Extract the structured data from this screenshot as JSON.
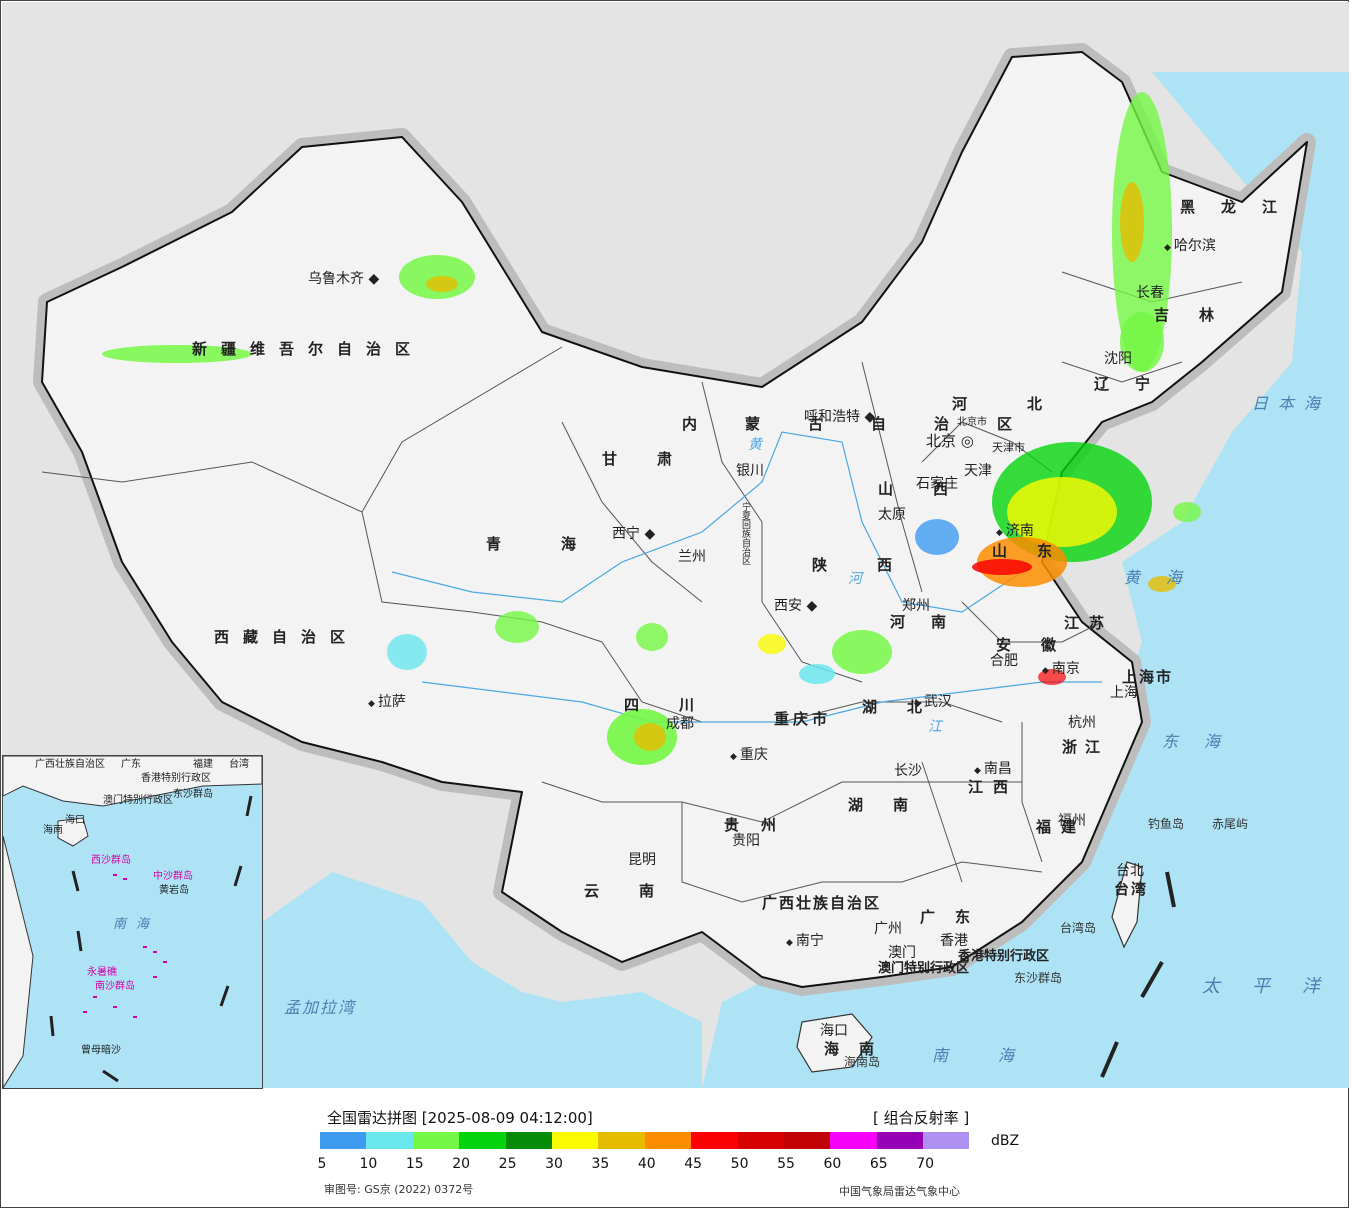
{
  "map": {
    "provinces": [
      {
        "name": "新疆维吾尔自治区"
      },
      {
        "name": "西藏自治区"
      },
      {
        "name": "青海"
      },
      {
        "name": "甘肃"
      },
      {
        "name": "内蒙古自治区"
      },
      {
        "name": "黑龙江"
      },
      {
        "name": "吉林"
      },
      {
        "name": "辽宁"
      },
      {
        "name": "河北"
      },
      {
        "name": "山西"
      },
      {
        "name": "山东"
      },
      {
        "name": "陕西"
      },
      {
        "name": "河南"
      },
      {
        "name": "江苏"
      },
      {
        "name": "安徽"
      },
      {
        "name": "湖北"
      },
      {
        "name": "四川"
      },
      {
        "name": "重庆市"
      },
      {
        "name": "贵州"
      },
      {
        "name": "云南"
      },
      {
        "name": "湖南"
      },
      {
        "name": "江西"
      },
      {
        "name": "浙江"
      },
      {
        "name": "福建"
      },
      {
        "name": "广东"
      },
      {
        "name": "广西壮族自治区"
      },
      {
        "name": "海南"
      },
      {
        "name": "台湾"
      },
      {
        "name": "宁夏回族自治区"
      },
      {
        "name": "上海市"
      },
      {
        "name": "天津市"
      },
      {
        "name": "北京市"
      },
      {
        "name": "香港特别行政区"
      },
      {
        "name": "澳门特别行政区"
      }
    ],
    "cities": [
      {
        "name": "乌鲁木齐"
      },
      {
        "name": "拉萨"
      },
      {
        "name": "西宁"
      },
      {
        "name": "兰州"
      },
      {
        "name": "银川"
      },
      {
        "name": "呼和浩特"
      },
      {
        "name": "哈尔滨"
      },
      {
        "name": "长春"
      },
      {
        "name": "沈阳"
      },
      {
        "name": "北京"
      },
      {
        "name": "天津"
      },
      {
        "name": "石家庄"
      },
      {
        "name": "太原"
      },
      {
        "name": "济南"
      },
      {
        "name": "西安"
      },
      {
        "name": "郑州"
      },
      {
        "name": "合肥"
      },
      {
        "name": "南京"
      },
      {
        "name": "上海"
      },
      {
        "name": "杭州"
      },
      {
        "name": "武汉"
      },
      {
        "name": "成都"
      },
      {
        "name": "重庆"
      },
      {
        "name": "贵阳"
      },
      {
        "name": "昆明"
      },
      {
        "name": "长沙"
      },
      {
        "name": "南昌"
      },
      {
        "name": "福州"
      },
      {
        "name": "台北"
      },
      {
        "name": "广州"
      },
      {
        "name": "南宁"
      },
      {
        "name": "海口"
      },
      {
        "name": "澳门"
      },
      {
        "name": "香港"
      }
    ],
    "seas": [
      {
        "name": "日本海"
      },
      {
        "name": "黄海"
      },
      {
        "name": "东海"
      },
      {
        "name": "太平洋"
      },
      {
        "name": "南海"
      },
      {
        "name": "孟加拉湾"
      }
    ],
    "islands": [
      {
        "name": "钓鱼岛"
      },
      {
        "name": "赤尾屿"
      },
      {
        "name": "东沙群岛"
      },
      {
        "name": "海南岛"
      },
      {
        "name": "台湾岛"
      }
    ],
    "rivers": [
      {
        "name": "黄"
      },
      {
        "name": "河"
      },
      {
        "name": "江"
      }
    ]
  },
  "inset": {
    "labels": [
      {
        "name": "广西壮族自治区"
      },
      {
        "name": "广东"
      },
      {
        "name": "福建"
      },
      {
        "name": "台湾"
      },
      {
        "name": "香港特别行政区"
      },
      {
        "name": "澳门特别行政区"
      },
      {
        "name": "东沙群岛"
      },
      {
        "name": "海南"
      },
      {
        "name": "海口"
      },
      {
        "name": "西沙群岛"
      },
      {
        "name": "中沙群岛"
      },
      {
        "name": "黄岩岛"
      },
      {
        "name": "南海"
      },
      {
        "name": "永暑礁"
      },
      {
        "name": "南沙群岛"
      },
      {
        "name": "曾母暗沙"
      }
    ]
  },
  "legend": {
    "title": "全国雷达拼图 [2025-08-09 04:12:00]",
    "product": "[ 组合反射率 ]",
    "unit": "dBZ",
    "colors": [
      "#3d9bf0",
      "#6ae6ed",
      "#74f745",
      "#04d40d",
      "#048c09",
      "#fafa03",
      "#e6bc00",
      "#fc8c00",
      "#fa0202",
      "#d60202",
      "#c00202",
      "#f700f7",
      "#9600b4",
      "#ad90f0"
    ],
    "ticks": [
      "5",
      "10",
      "15",
      "20",
      "25",
      "30",
      "35",
      "40",
      "45",
      "50",
      "55",
      "60",
      "65",
      "70"
    ],
    "approval": "审图号: GS京 (2022) 0372号",
    "source": "中国气象局雷达气象中心"
  }
}
